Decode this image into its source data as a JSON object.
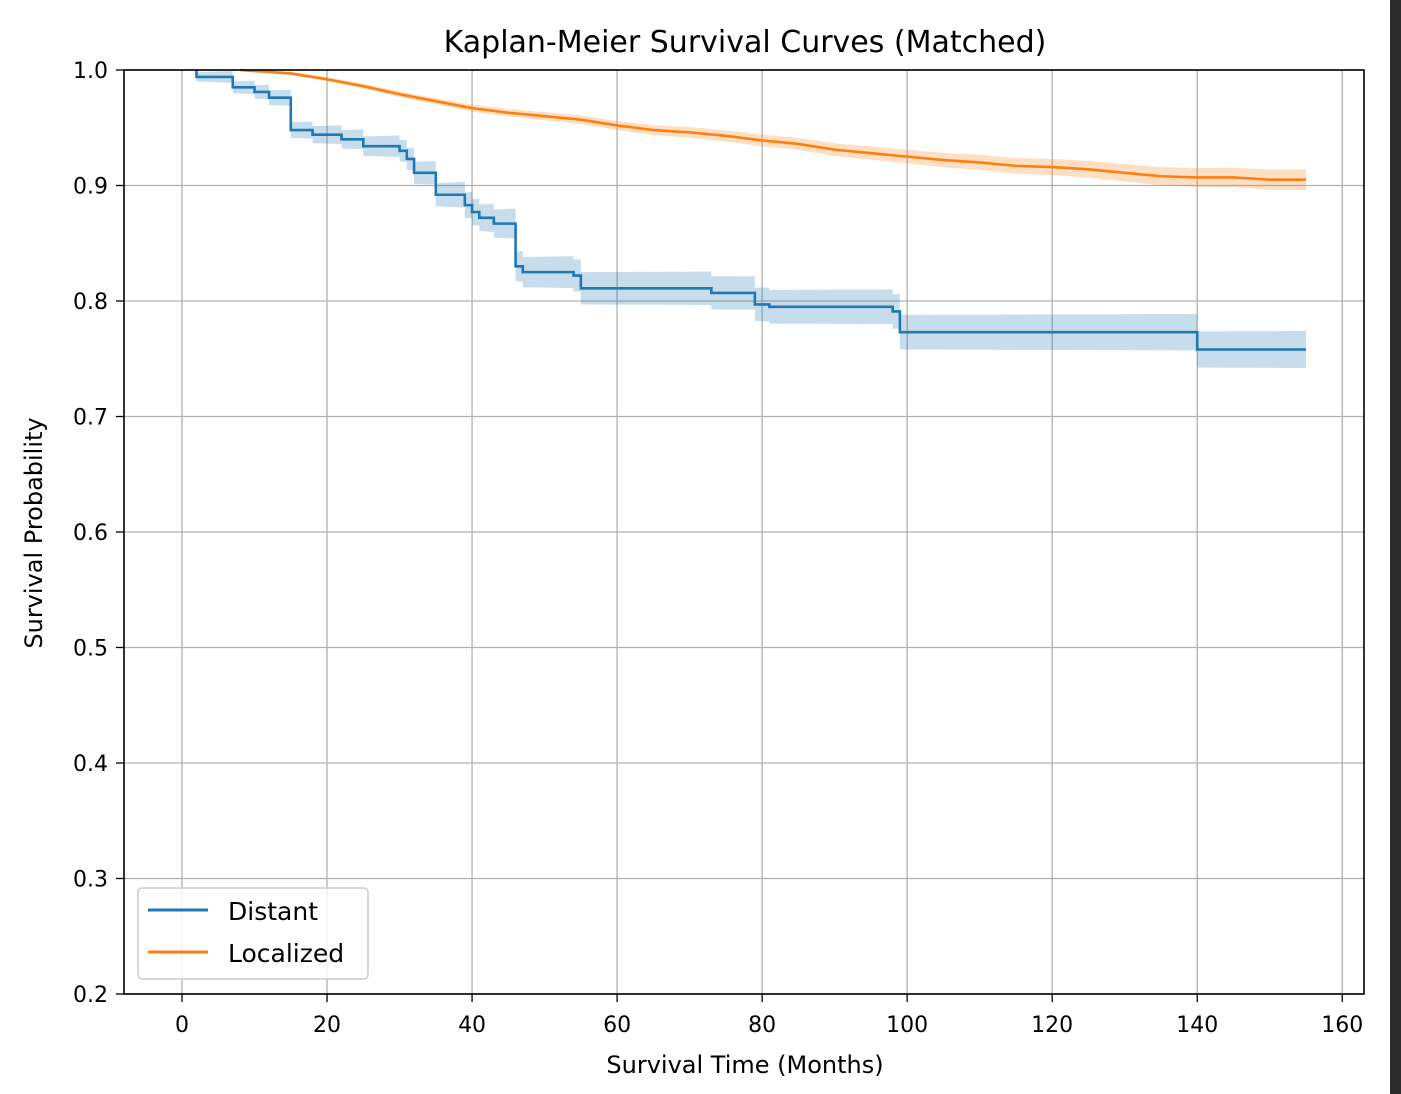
{
  "chart_data": {
    "type": "line",
    "subtype": "kaplan-meier step with confidence bands",
    "title": "Kaplan-Meier Survival Curves (Matched)",
    "xlabel": "Survival Time (Months)",
    "ylabel": "Survival Probability",
    "xlim": [
      -8,
      163
    ],
    "ylim": [
      0.2,
      1.0
    ],
    "xticks": [
      0,
      20,
      40,
      60,
      80,
      100,
      120,
      140,
      160
    ],
    "xtick_labels": [
      "0",
      "20",
      "40",
      "60",
      "80",
      "100",
      "120",
      "140",
      "160"
    ],
    "yticks": [
      0.2,
      0.3,
      0.4,
      0.5,
      0.6,
      0.7,
      0.8,
      0.9,
      1.0
    ],
    "ytick_labels": [
      "0.2",
      "0.3",
      "0.4",
      "0.5",
      "0.6",
      "0.7",
      "0.8",
      "0.9",
      "1.0"
    ],
    "grid": true,
    "legend_position": "lower-left",
    "series": [
      {
        "name": "Distant",
        "color": "#1f77b4",
        "band_color": "#1f77b4",
        "points": [
          [
            2,
            1.0
          ],
          [
            2,
            0.994
          ],
          [
            7,
            0.994
          ],
          [
            7,
            0.985
          ],
          [
            10,
            0.985
          ],
          [
            10,
            0.981
          ],
          [
            12,
            0.981
          ],
          [
            12,
            0.976
          ],
          [
            15,
            0.976
          ],
          [
            15,
            0.948
          ],
          [
            18,
            0.948
          ],
          [
            18,
            0.944
          ],
          [
            22,
            0.944
          ],
          [
            22,
            0.94
          ],
          [
            25,
            0.94
          ],
          [
            25,
            0.934
          ],
          [
            30,
            0.934
          ],
          [
            30,
            0.93
          ],
          [
            31,
            0.93
          ],
          [
            31,
            0.923
          ],
          [
            32,
            0.923
          ],
          [
            32,
            0.911
          ],
          [
            35,
            0.911
          ],
          [
            35,
            0.892
          ],
          [
            39,
            0.892
          ],
          [
            39,
            0.883
          ],
          [
            40,
            0.883
          ],
          [
            40,
            0.877
          ],
          [
            41,
            0.877
          ],
          [
            41,
            0.872
          ],
          [
            43,
            0.872
          ],
          [
            43,
            0.867
          ],
          [
            46,
            0.867
          ],
          [
            46,
            0.83
          ],
          [
            47,
            0.83
          ],
          [
            47,
            0.825
          ],
          [
            54,
            0.825
          ],
          [
            54,
            0.822
          ],
          [
            55,
            0.822
          ],
          [
            55,
            0.811
          ],
          [
            73,
            0.811
          ],
          [
            73,
            0.807
          ],
          [
            79,
            0.807
          ],
          [
            79,
            0.797
          ],
          [
            81,
            0.797
          ],
          [
            81,
            0.795
          ],
          [
            98,
            0.795
          ],
          [
            98,
            0.791
          ],
          [
            99,
            0.791
          ],
          [
            99,
            0.773
          ],
          [
            140,
            0.773
          ],
          [
            140,
            0.758
          ],
          [
            155,
            0.758
          ]
        ],
        "band_halfwidth": [
          [
            2,
            0.004
          ],
          [
            15,
            0.007
          ],
          [
            35,
            0.01
          ],
          [
            46,
            0.013
          ],
          [
            55,
            0.014
          ],
          [
            99,
            0.015
          ],
          [
            155,
            0.016
          ]
        ]
      },
      {
        "name": "Localized",
        "color": "#ff7f0e",
        "band_color": "#ff7f0e",
        "points": [
          [
            8,
            1.0
          ],
          [
            15,
            0.997
          ],
          [
            20,
            0.992
          ],
          [
            25,
            0.986
          ],
          [
            30,
            0.979
          ],
          [
            35,
            0.973
          ],
          [
            40,
            0.967
          ],
          [
            45,
            0.963
          ],
          [
            50,
            0.96
          ],
          [
            55,
            0.957
          ],
          [
            60,
            0.952
          ],
          [
            65,
            0.948
          ],
          [
            70,
            0.946
          ],
          [
            75,
            0.943
          ],
          [
            80,
            0.939
          ],
          [
            85,
            0.936
          ],
          [
            90,
            0.931
          ],
          [
            95,
            0.928
          ],
          [
            100,
            0.925
          ],
          [
            105,
            0.922
          ],
          [
            110,
            0.92
          ],
          [
            115,
            0.917
          ],
          [
            120,
            0.916
          ],
          [
            125,
            0.914
          ],
          [
            130,
            0.911
          ],
          [
            135,
            0.908
          ],
          [
            140,
            0.907
          ],
          [
            145,
            0.907
          ],
          [
            150,
            0.905
          ],
          [
            155,
            0.905
          ]
        ],
        "band_halfwidth": [
          [
            8,
            0.001
          ],
          [
            40,
            0.003
          ],
          [
            80,
            0.005
          ],
          [
            120,
            0.007
          ],
          [
            155,
            0.009
          ]
        ]
      }
    ]
  }
}
